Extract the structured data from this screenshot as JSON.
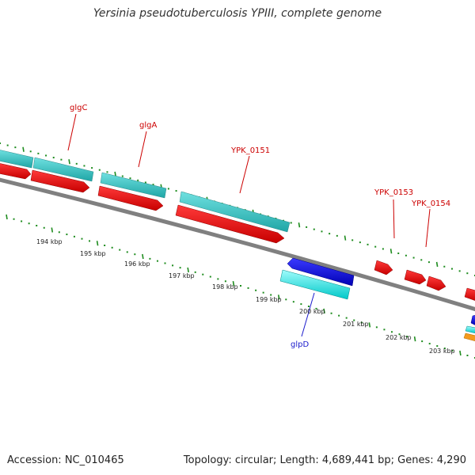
{
  "title": "Yersinia pseudotuberculosis YPIII, complete genome",
  "footer": {
    "accession": "Accession: NC_010465",
    "stats": "Topology: circular; Length: 4,689,441 bp; Genes: 4,290"
  },
  "colors": {
    "forward_cds": "#e60000",
    "reverse_cds": "#0000e6",
    "forward_gene": "#3cc8c8",
    "reverse_gene": "#00e6e6",
    "backbone": "#808080",
    "ticks": "#1e8c1e",
    "label_red": "#cc0000",
    "label_blue": "#1a1acc"
  },
  "gene_labels": [
    {
      "text": "glgC",
      "color": "red"
    },
    {
      "text": "glgA",
      "color": "red"
    },
    {
      "text": "YPK_0151",
      "color": "red"
    },
    {
      "text": "YPK_0153",
      "color": "red"
    },
    {
      "text": "YPK_0154",
      "color": "red"
    },
    {
      "text": "glpD",
      "color": "blue"
    }
  ],
  "scale_labels": [
    "194 kbp",
    "195 kbp",
    "196 kbp",
    "197 kbp",
    "198 kbp",
    "199 kbp",
    "200 kbp",
    "201 kbp",
    "202 kbp",
    "203 kbp"
  ]
}
